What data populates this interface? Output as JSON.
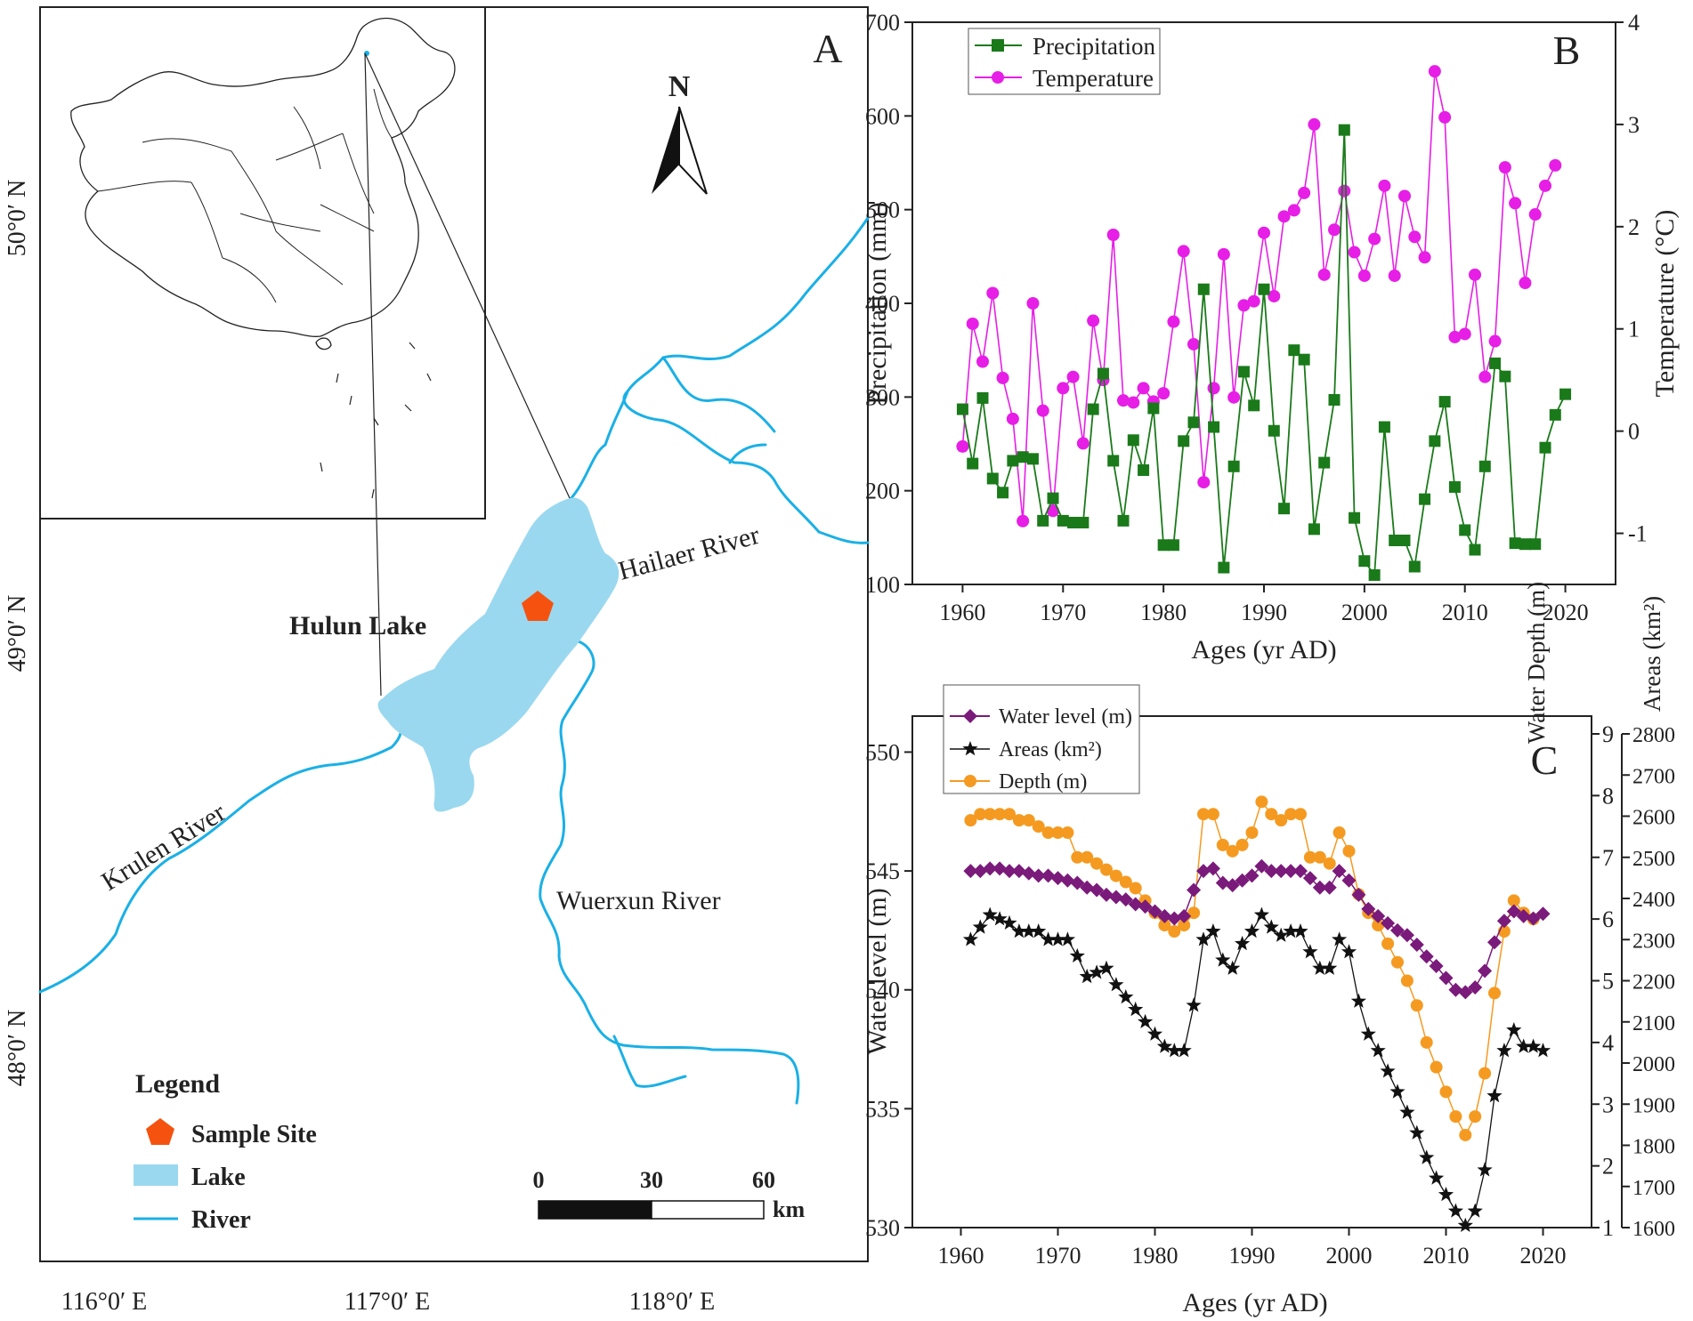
{
  "colors": {
    "lake": "#9ad8ef",
    "river": "#1ab0e6",
    "sample": "#f5520f",
    "precip": "#1a7a1a",
    "temp": "#e61ee6",
    "water_level": "#7a1a7a",
    "areas": "#111111",
    "depth": "#f59a21"
  },
  "map": {
    "panel_label": "A",
    "north": "N",
    "lat_labels": [
      "50°0′ N",
      "49°0′ N",
      "48°0′ N"
    ],
    "lon_labels": [
      "116°0′ E",
      "117°0′ E",
      "118°0′ E"
    ],
    "lake_name": "Hulun Lake",
    "rivers": {
      "hailaer": "Hailaer River",
      "krulen": "Krulen River",
      "wuerxun": "Wuerxun River"
    },
    "legend": {
      "title": "Legend",
      "sample": "Sample Site",
      "lake": "Lake",
      "river": "River"
    },
    "scale": {
      "ticks": [
        "0",
        "30",
        "60"
      ],
      "unit": "km"
    }
  },
  "chart_data": [
    {
      "type": "line",
      "panel_label": "B",
      "xlabel": "Ages (yr AD)",
      "ylabel_left": "Precipitation (mm)",
      "ylabel_right": "Temperature (°C)",
      "xlim": [
        1955,
        2025
      ],
      "ylim_left": [
        100,
        700
      ],
      "ylim_right": [
        -1.5,
        4
      ],
      "xticks": [
        1960,
        1970,
        1980,
        1990,
        2000,
        2010,
        2020
      ],
      "yticks_left": [
        100,
        200,
        300,
        400,
        500,
        600,
        700
      ],
      "yticks_right": [
        -1,
        0,
        1,
        2,
        3,
        4
      ],
      "x": [
        1960,
        1961,
        1962,
        1963,
        1964,
        1965,
        1966,
        1967,
        1968,
        1969,
        1970,
        1971,
        1972,
        1973,
        1974,
        1975,
        1976,
        1977,
        1978,
        1979,
        1980,
        1981,
        1982,
        1983,
        1984,
        1985,
        1986,
        1987,
        1988,
        1989,
        1990,
        1991,
        1992,
        1993,
        1994,
        1995,
        1996,
        1997,
        1998,
        1999,
        2000,
        2001,
        2002,
        2003,
        2004,
        2005,
        2006,
        2007,
        2008,
        2009,
        2010,
        2011,
        2012,
        2013,
        2014,
        2015,
        2016,
        2017,
        2018,
        2019,
        2020
      ],
      "series": [
        {
          "name": "Precipitation",
          "axis": "left",
          "marker": "square",
          "values": [
            287,
            229,
            299,
            213,
            198,
            232,
            236,
            234,
            168,
            192,
            168,
            166,
            166,
            287,
            325,
            232,
            168,
            254,
            222,
            288,
            142,
            142,
            253,
            273,
            415,
            268,
            118,
            226,
            327,
            291,
            415,
            264,
            181,
            350,
            340,
            159,
            230,
            297,
            585,
            171,
            125,
            110,
            268,
            147,
            147,
            119,
            191,
            253,
            295,
            204,
            158,
            137,
            226,
            336,
            322,
            144,
            143,
            143,
            246,
            281,
            303
          ]
        },
        {
          "name": "Temperature",
          "axis": "right",
          "marker": "circle",
          "values": [
            -0.15,
            1.05,
            0.68,
            1.35,
            0.52,
            0.12,
            -0.88,
            1.25,
            0.2,
            -0.78,
            0.42,
            0.53,
            -0.12,
            1.08,
            0.5,
            1.92,
            0.3,
            0.28,
            0.42,
            0.29,
            0.37,
            1.07,
            1.76,
            0.85,
            -0.5,
            0.42,
            1.73,
            0.33,
            1.23,
            1.27,
            1.94,
            1.32,
            2.1,
            2.16,
            2.33,
            3.0,
            1.53,
            1.97,
            2.35,
            1.75,
            1.52,
            1.88,
            2.4,
            1.52,
            2.3,
            1.9,
            1.7,
            3.52,
            3.07,
            0.92,
            0.95,
            1.53,
            0.53,
            0.88,
            2.58,
            2.23,
            1.45,
            2.12,
            2.4,
            2.6,
            null
          ]
        }
      ]
    },
    {
      "type": "line",
      "panel_label": "C",
      "xlabel": "Ages (yr AD)",
      "ylabel_left": "Water level (m)",
      "ylabel_right1": "Water Depth (m)",
      "ylabel_right2": "Areas (km²)",
      "xlim": [
        1955,
        2025
      ],
      "ylim_left": [
        530,
        552
      ],
      "ylim_depth": [
        1,
        9
      ],
      "ylim_area": [
        1600,
        2800
      ],
      "xticks": [
        1960,
        1970,
        1980,
        1990,
        2000,
        2010,
        2020
      ],
      "yticks_left": [
        530,
        535,
        540,
        545,
        550
      ],
      "yticks_depth": [
        1,
        2,
        3,
        4,
        5,
        6,
        7,
        8,
        9
      ],
      "yticks_area": [
        1600,
        1700,
        1800,
        1900,
        2000,
        2100,
        2200,
        2300,
        2400,
        2500,
        2600,
        2700,
        2800
      ],
      "x": [
        1961,
        1962,
        1963,
        1964,
        1965,
        1966,
        1967,
        1968,
        1969,
        1970,
        1971,
        1972,
        1973,
        1974,
        1975,
        1976,
        1977,
        1978,
        1979,
        1980,
        1981,
        1982,
        1983,
        1984,
        1985,
        1986,
        1987,
        1988,
        1989,
        1990,
        1991,
        1992,
        1993,
        1994,
        1995,
        1996,
        1997,
        1998,
        1999,
        2000,
        2001,
        2002,
        2003,
        2004,
        2005,
        2006,
        2007,
        2008,
        2009,
        2010,
        2011,
        2012,
        2013,
        2014,
        2015,
        2016,
        2017,
        2018,
        2019,
        2020
      ],
      "series": [
        {
          "name": "Water level (m)",
          "axis": "left",
          "marker": "diamond",
          "values": [
            545.0,
            545.0,
            545.1,
            545.1,
            545.0,
            545.0,
            544.9,
            544.8,
            544.8,
            544.7,
            544.6,
            544.5,
            544.3,
            544.2,
            544.0,
            543.9,
            543.8,
            543.6,
            543.5,
            543.3,
            543.1,
            543.0,
            543.1,
            544.2,
            545.0,
            545.1,
            544.5,
            544.4,
            544.6,
            544.8,
            545.2,
            545.0,
            545.0,
            545.0,
            545.0,
            544.7,
            544.3,
            544.3,
            545.0,
            544.6,
            544.0,
            543.4,
            543.1,
            542.8,
            542.5,
            542.3,
            541.9,
            541.4,
            541.0,
            540.5,
            540.0,
            539.9,
            540.1,
            540.8,
            542.0,
            542.9,
            543.3,
            543.1,
            543.0,
            543.2
          ]
        },
        {
          "name": "Areas (km²)",
          "axis": "area",
          "marker": "star",
          "values": [
            2300,
            2330,
            2360,
            2350,
            2340,
            2320,
            2320,
            2320,
            2300,
            2300,
            2300,
            2260,
            2210,
            2220,
            2230,
            2190,
            2160,
            2130,
            2100,
            2070,
            2040,
            2030,
            2030,
            2140,
            2300,
            2320,
            2250,
            2230,
            2290,
            2320,
            2360,
            2330,
            2310,
            2320,
            2320,
            2270,
            2230,
            2230,
            2300,
            2270,
            2150,
            2070,
            2030,
            1980,
            1930,
            1880,
            1830,
            1770,
            1720,
            1680,
            1640,
            1605,
            1640,
            1740,
            1920,
            2030,
            2080,
            2040,
            2040,
            2030
          ]
        },
        {
          "name": "Depth (m)",
          "axis": "depth",
          "marker": "circle",
          "values": [
            7.6,
            7.7,
            7.7,
            7.7,
            7.7,
            7.6,
            7.6,
            7.5,
            7.4,
            7.4,
            7.4,
            7.0,
            7.0,
            6.9,
            6.8,
            6.7,
            6.6,
            6.5,
            6.3,
            6.1,
            5.9,
            5.8,
            5.9,
            6.1,
            7.7,
            7.7,
            7.2,
            7.1,
            7.2,
            7.4,
            7.9,
            7.7,
            7.6,
            7.7,
            7.7,
            7.0,
            7.0,
            6.9,
            7.4,
            7.1,
            6.4,
            6.1,
            5.9,
            5.6,
            5.3,
            5.0,
            4.6,
            4.0,
            3.6,
            3.2,
            2.8,
            2.5,
            2.8,
            3.5,
            4.8,
            5.8,
            6.3,
            6.1,
            6.0,
            null
          ]
        }
      ]
    }
  ]
}
